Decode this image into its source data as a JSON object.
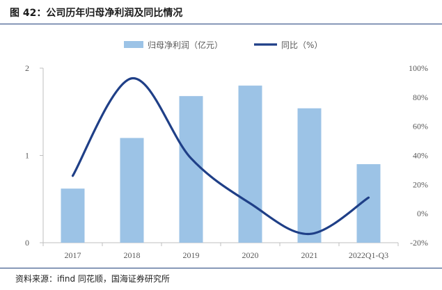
{
  "figure": {
    "title": "图 42：公司历年归母净利润及同比情况",
    "source": "资料来源：ifind 同花顺，国海证券研究所"
  },
  "chart_data": {
    "type": "bar",
    "categories": [
      "2017",
      "2018",
      "2019",
      "2020",
      "2021",
      "2022Q1-Q3"
    ],
    "series": [
      {
        "name": "归母净利润（亿元）",
        "type": "bar",
        "axis": "left",
        "color": "#9cc3e6",
        "values": [
          0.62,
          1.2,
          1.68,
          1.8,
          1.54,
          0.9
        ]
      },
      {
        "name": "同比（%）",
        "type": "line",
        "axis": "right",
        "color": "#1f3f87",
        "smooth": true,
        "values": [
          26,
          93,
          38,
          7,
          -14,
          11
        ]
      }
    ],
    "y_left": {
      "lim": [
        0,
        2
      ],
      "ticks": [
        "0",
        "1",
        "2"
      ]
    },
    "y_right": {
      "lim": [
        -20,
        100
      ],
      "ticks": [
        "-20%",
        "0%",
        "20%",
        "40%",
        "60%",
        "80%",
        "100%"
      ]
    },
    "grid": false,
    "legend_position": "top"
  }
}
